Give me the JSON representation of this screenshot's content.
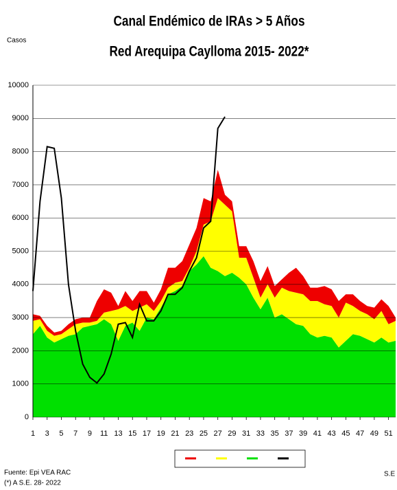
{
  "chart_data": {
    "type": "area",
    "title": "Canal Endémico de IRAs > 5 Años",
    "subtitle": "Red Arequipa Caylloma 2015- 2022*",
    "y_label": "Casos",
    "x_label": "S.E",
    "source": "Fuente: Epi VEA RAC",
    "footnote": "(*) A S.E. 28- 2022",
    "x": [
      1,
      2,
      3,
      4,
      5,
      6,
      7,
      8,
      9,
      10,
      11,
      12,
      13,
      14,
      15,
      16,
      17,
      18,
      19,
      20,
      21,
      22,
      23,
      24,
      25,
      26,
      27,
      28,
      29,
      30,
      31,
      32,
      33,
      34,
      35,
      36,
      37,
      38,
      39,
      40,
      41,
      42,
      43,
      44,
      45,
      46,
      47,
      48,
      49,
      50,
      51,
      52
    ],
    "xlim": [
      1,
      52
    ],
    "xticks": [
      1,
      3,
      5,
      7,
      9,
      11,
      13,
      15,
      17,
      19,
      21,
      23,
      25,
      27,
      29,
      31,
      33,
      35,
      37,
      39,
      41,
      43,
      45,
      47,
      49,
      51
    ],
    "ylim": [
      0,
      10000
    ],
    "yticks": [
      0,
      1000,
      2000,
      3000,
      4000,
      5000,
      6000,
      7000,
      8000,
      9000,
      10000
    ],
    "grid": true,
    "stacked": true,
    "series": [
      {
        "color": "#00e000",
        "values": [
          2500,
          2750,
          2400,
          2250,
          2350,
          2450,
          2500,
          2700,
          2750,
          2800,
          2950,
          2800,
          2300,
          2750,
          2850,
          2600,
          3000,
          2950,
          3300,
          3700,
          3800,
          3950,
          4400,
          4600,
          4850,
          4500,
          4400,
          4250,
          4350,
          4200,
          4000,
          3600,
          3250,
          3600,
          3000,
          3100,
          2950,
          2800,
          2750,
          2500,
          2400,
          2450,
          2400,
          2100,
          2300,
          2500,
          2450,
          2350,
          2250,
          2400,
          2250,
          2300
        ]
      },
      {
        "color": "#ffff00",
        "values": [
          400,
          200,
          200,
          200,
          150,
          200,
          300,
          150,
          100,
          100,
          200,
          400,
          950,
          600,
          350,
          700,
          400,
          250,
          200,
          200,
          250,
          150,
          100,
          400,
          950,
          1400,
          2200,
          2150,
          1850,
          600,
          800,
          600,
          350,
          400,
          600,
          800,
          850,
          950,
          950,
          1000,
          1100,
          950,
          950,
          900,
          1150,
          850,
          750,
          750,
          700,
          800,
          550,
          600
        ]
      },
      {
        "color": "#ee0000",
        "values": [
          200,
          100,
          150,
          100,
          100,
          150,
          150,
          150,
          150,
          600,
          700,
          550,
          100,
          450,
          300,
          500,
          400,
          250,
          350,
          600,
          450,
          600,
          700,
          700,
          800,
          600,
          850,
          300,
          300,
          350,
          350,
          500,
          500,
          550,
          350,
          250,
          550,
          750,
          550,
          400,
          400,
          550,
          500,
          500,
          250,
          350,
          300,
          250,
          350,
          350,
          550,
          100
        ]
      },
      {
        "type": "line",
        "color": "#000000",
        "values": [
          3800,
          6500,
          8150,
          8100,
          6600,
          4000,
          2600,
          1600,
          1200,
          1030,
          1300,
          1900,
          2800,
          2850,
          2400,
          3400,
          2900,
          2900,
          3200,
          3700,
          3700,
          3900,
          4400,
          4800,
          5700,
          5900,
          8700,
          9050,
          null,
          null,
          null,
          null,
          null,
          null,
          null,
          null,
          null,
          null,
          null,
          null,
          null,
          null,
          null,
          null,
          null,
          null,
          null,
          null,
          null,
          null,
          null,
          null
        ]
      }
    ]
  }
}
